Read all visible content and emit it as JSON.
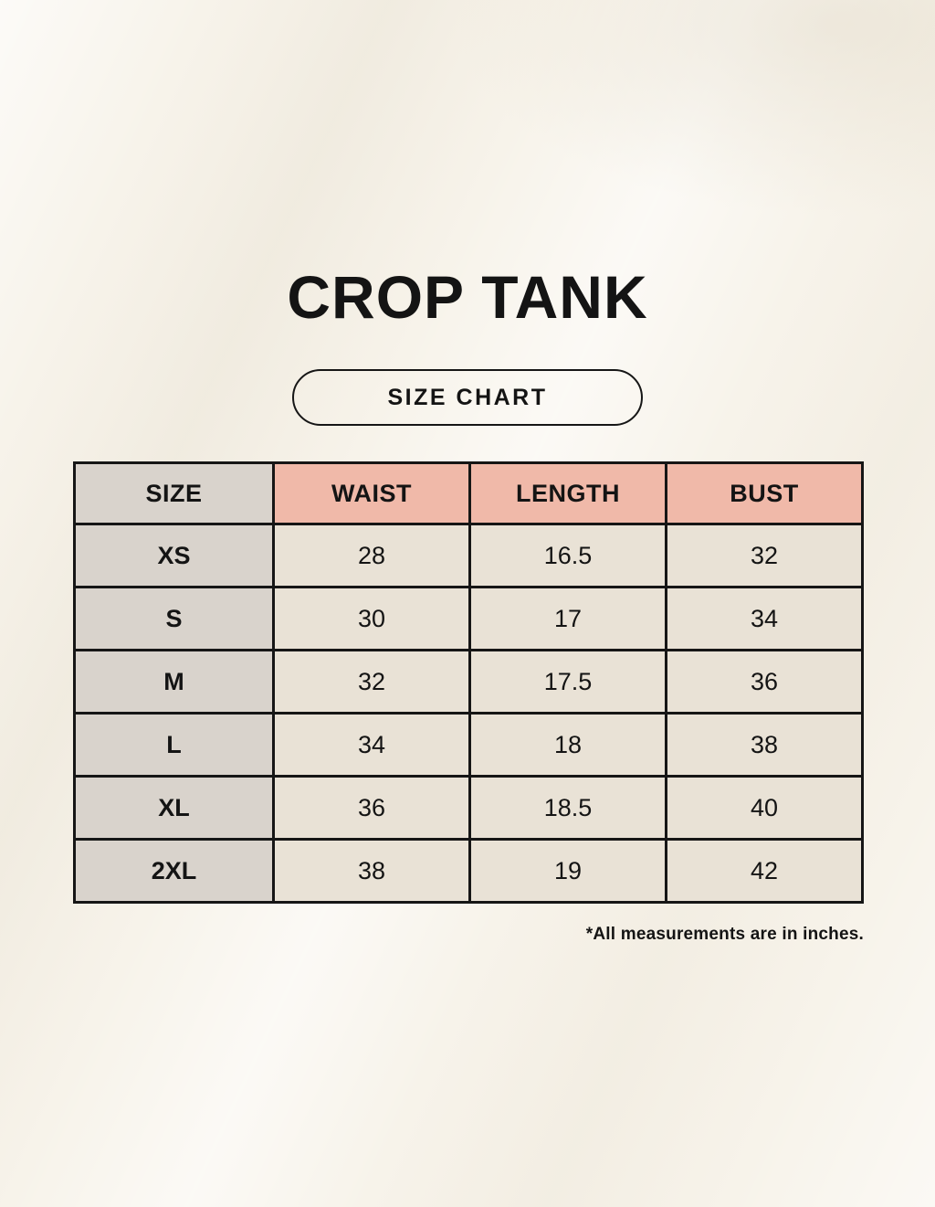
{
  "page": {
    "product_title": "CROP TANK",
    "chart_label": "SIZE CHART",
    "footnote": "*All measurements are in inches."
  },
  "colors": {
    "background": "#f7f3ea",
    "header_pink": "#f0b9a9",
    "size_col_gray": "#d9d3cc",
    "cell_cream": "#e9e2d6",
    "border": "#161616",
    "text": "#141414"
  },
  "chart_data": {
    "type": "table",
    "title": "CROP TANK",
    "subtitle": "SIZE CHART",
    "units": "inches",
    "columns": [
      "SIZE",
      "WAIST",
      "LENGTH",
      "BUST"
    ],
    "rows": [
      [
        "XS",
        "28",
        "16.5",
        "32"
      ],
      [
        "S",
        "30",
        "17",
        "34"
      ],
      [
        "M",
        "32",
        "17.5",
        "36"
      ],
      [
        "L",
        "34",
        "18",
        "38"
      ],
      [
        "XL",
        "36",
        "18.5",
        "40"
      ],
      [
        "2XL",
        "38",
        "19",
        "42"
      ]
    ]
  }
}
